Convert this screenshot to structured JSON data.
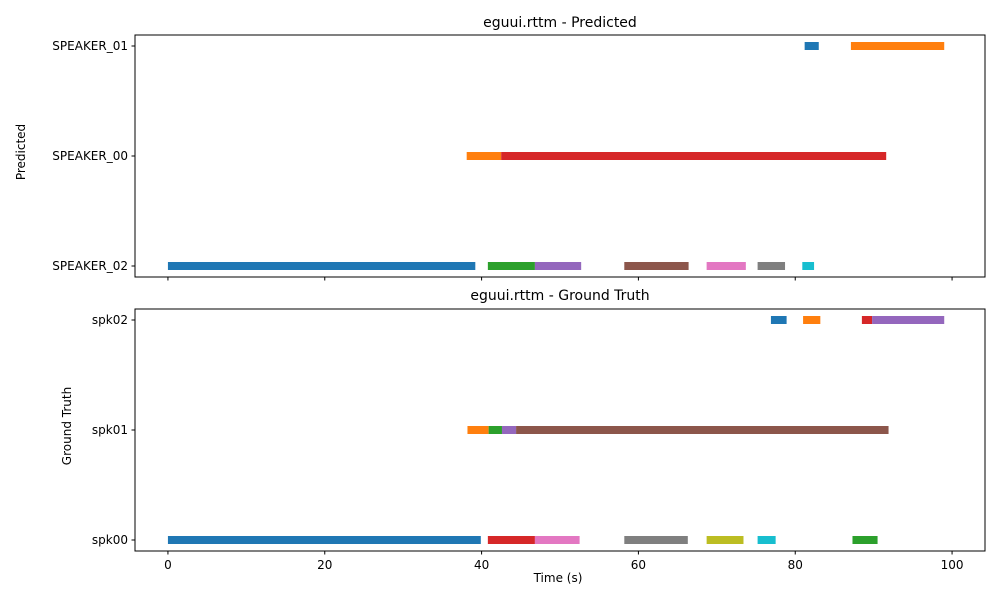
{
  "chart_data": [
    {
      "type": "timeline",
      "title": "eguui.rttm - Predicted",
      "xlabel": "",
      "ylabel": "Predicted",
      "xlim": [
        -4.2,
        104.2
      ],
      "x_ticks": [
        0,
        20,
        40,
        60,
        80,
        100
      ],
      "x_tick_labels_visible": false,
      "categories": [
        "SPEAKER_02",
        "SPEAKER_00",
        "SPEAKER_01"
      ],
      "grid": false,
      "segments": [
        {
          "speaker": "SPEAKER_02",
          "start": 0.0,
          "end": 39.2,
          "color": "#1f77b4"
        },
        {
          "speaker": "SPEAKER_02",
          "start": 40.8,
          "end": 46.8,
          "color": "#2ca02c"
        },
        {
          "speaker": "SPEAKER_02",
          "start": 46.8,
          "end": 52.7,
          "color": "#9467bd"
        },
        {
          "speaker": "SPEAKER_02",
          "start": 58.2,
          "end": 66.4,
          "color": "#8c564b"
        },
        {
          "speaker": "SPEAKER_02",
          "start": 68.7,
          "end": 73.7,
          "color": "#e377c2"
        },
        {
          "speaker": "SPEAKER_02",
          "start": 75.2,
          "end": 78.7,
          "color": "#7f7f7f"
        },
        {
          "speaker": "SPEAKER_02",
          "start": 80.9,
          "end": 82.4,
          "color": "#17becf"
        },
        {
          "speaker": "SPEAKER_00",
          "start": 38.1,
          "end": 42.5,
          "color": "#ff7f0e"
        },
        {
          "speaker": "SPEAKER_00",
          "start": 42.5,
          "end": 91.6,
          "color": "#d62728"
        },
        {
          "speaker": "SPEAKER_01",
          "start": 81.2,
          "end": 83.0,
          "color": "#1f77b4"
        },
        {
          "speaker": "SPEAKER_01",
          "start": 87.1,
          "end": 99.0,
          "color": "#ff7f0e"
        }
      ]
    },
    {
      "type": "timeline",
      "title": "eguui.rttm - Ground Truth",
      "xlabel": "Time (s)",
      "ylabel": "Ground Truth",
      "xlim": [
        -4.2,
        104.2
      ],
      "x_ticks": [
        0,
        20,
        40,
        60,
        80,
        100
      ],
      "x_tick_labels_visible": true,
      "categories": [
        "spk00",
        "spk01",
        "spk02"
      ],
      "grid": false,
      "segments": [
        {
          "speaker": "spk00",
          "start": 0.0,
          "end": 39.9,
          "color": "#1f77b4"
        },
        {
          "speaker": "spk00",
          "start": 40.8,
          "end": 46.8,
          "color": "#d62728"
        },
        {
          "speaker": "spk00",
          "start": 46.8,
          "end": 52.5,
          "color": "#e377c2"
        },
        {
          "speaker": "spk00",
          "start": 58.2,
          "end": 66.3,
          "color": "#7f7f7f"
        },
        {
          "speaker": "spk00",
          "start": 68.7,
          "end": 73.4,
          "color": "#bcbd22"
        },
        {
          "speaker": "spk00",
          "start": 75.2,
          "end": 77.5,
          "color": "#17becf"
        },
        {
          "speaker": "spk00",
          "start": 87.3,
          "end": 90.5,
          "color": "#2ca02c"
        },
        {
          "speaker": "spk01",
          "start": 38.2,
          "end": 40.9,
          "color": "#ff7f0e"
        },
        {
          "speaker": "spk01",
          "start": 40.9,
          "end": 42.6,
          "color": "#2ca02c"
        },
        {
          "speaker": "spk01",
          "start": 42.6,
          "end": 44.4,
          "color": "#9467bd"
        },
        {
          "speaker": "spk01",
          "start": 44.4,
          "end": 91.9,
          "color": "#8c564b"
        },
        {
          "speaker": "spk02",
          "start": 76.9,
          "end": 78.9,
          "color": "#1f77b4"
        },
        {
          "speaker": "spk02",
          "start": 81.0,
          "end": 83.2,
          "color": "#ff7f0e"
        },
        {
          "speaker": "spk02",
          "start": 88.5,
          "end": 89.8,
          "color": "#d62728"
        },
        {
          "speaker": "spk02",
          "start": 89.8,
          "end": 99.0,
          "color": "#9467bd"
        }
      ]
    }
  ]
}
